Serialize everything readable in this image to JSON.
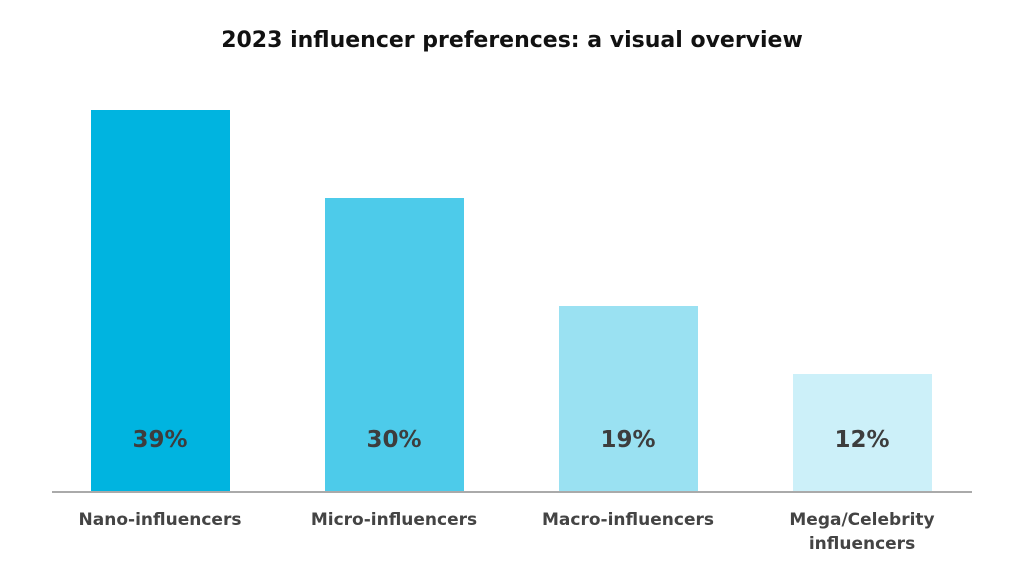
{
  "chart_data": {
    "type": "bar",
    "title": "2023 influencer preferences: a visual overview",
    "categories": [
      "Nano-influencers",
      "Micro-influencers",
      "Macro-influencers",
      "Mega/Celebrity influencers"
    ],
    "values": [
      39,
      30,
      19,
      12
    ],
    "value_labels": [
      "39%",
      "30%",
      "19%",
      "12%"
    ],
    "colors": [
      "#00b4e0",
      "#4dcbea",
      "#9ae1f2",
      "#ccf0f9"
    ],
    "ylim": [
      0,
      40
    ]
  }
}
